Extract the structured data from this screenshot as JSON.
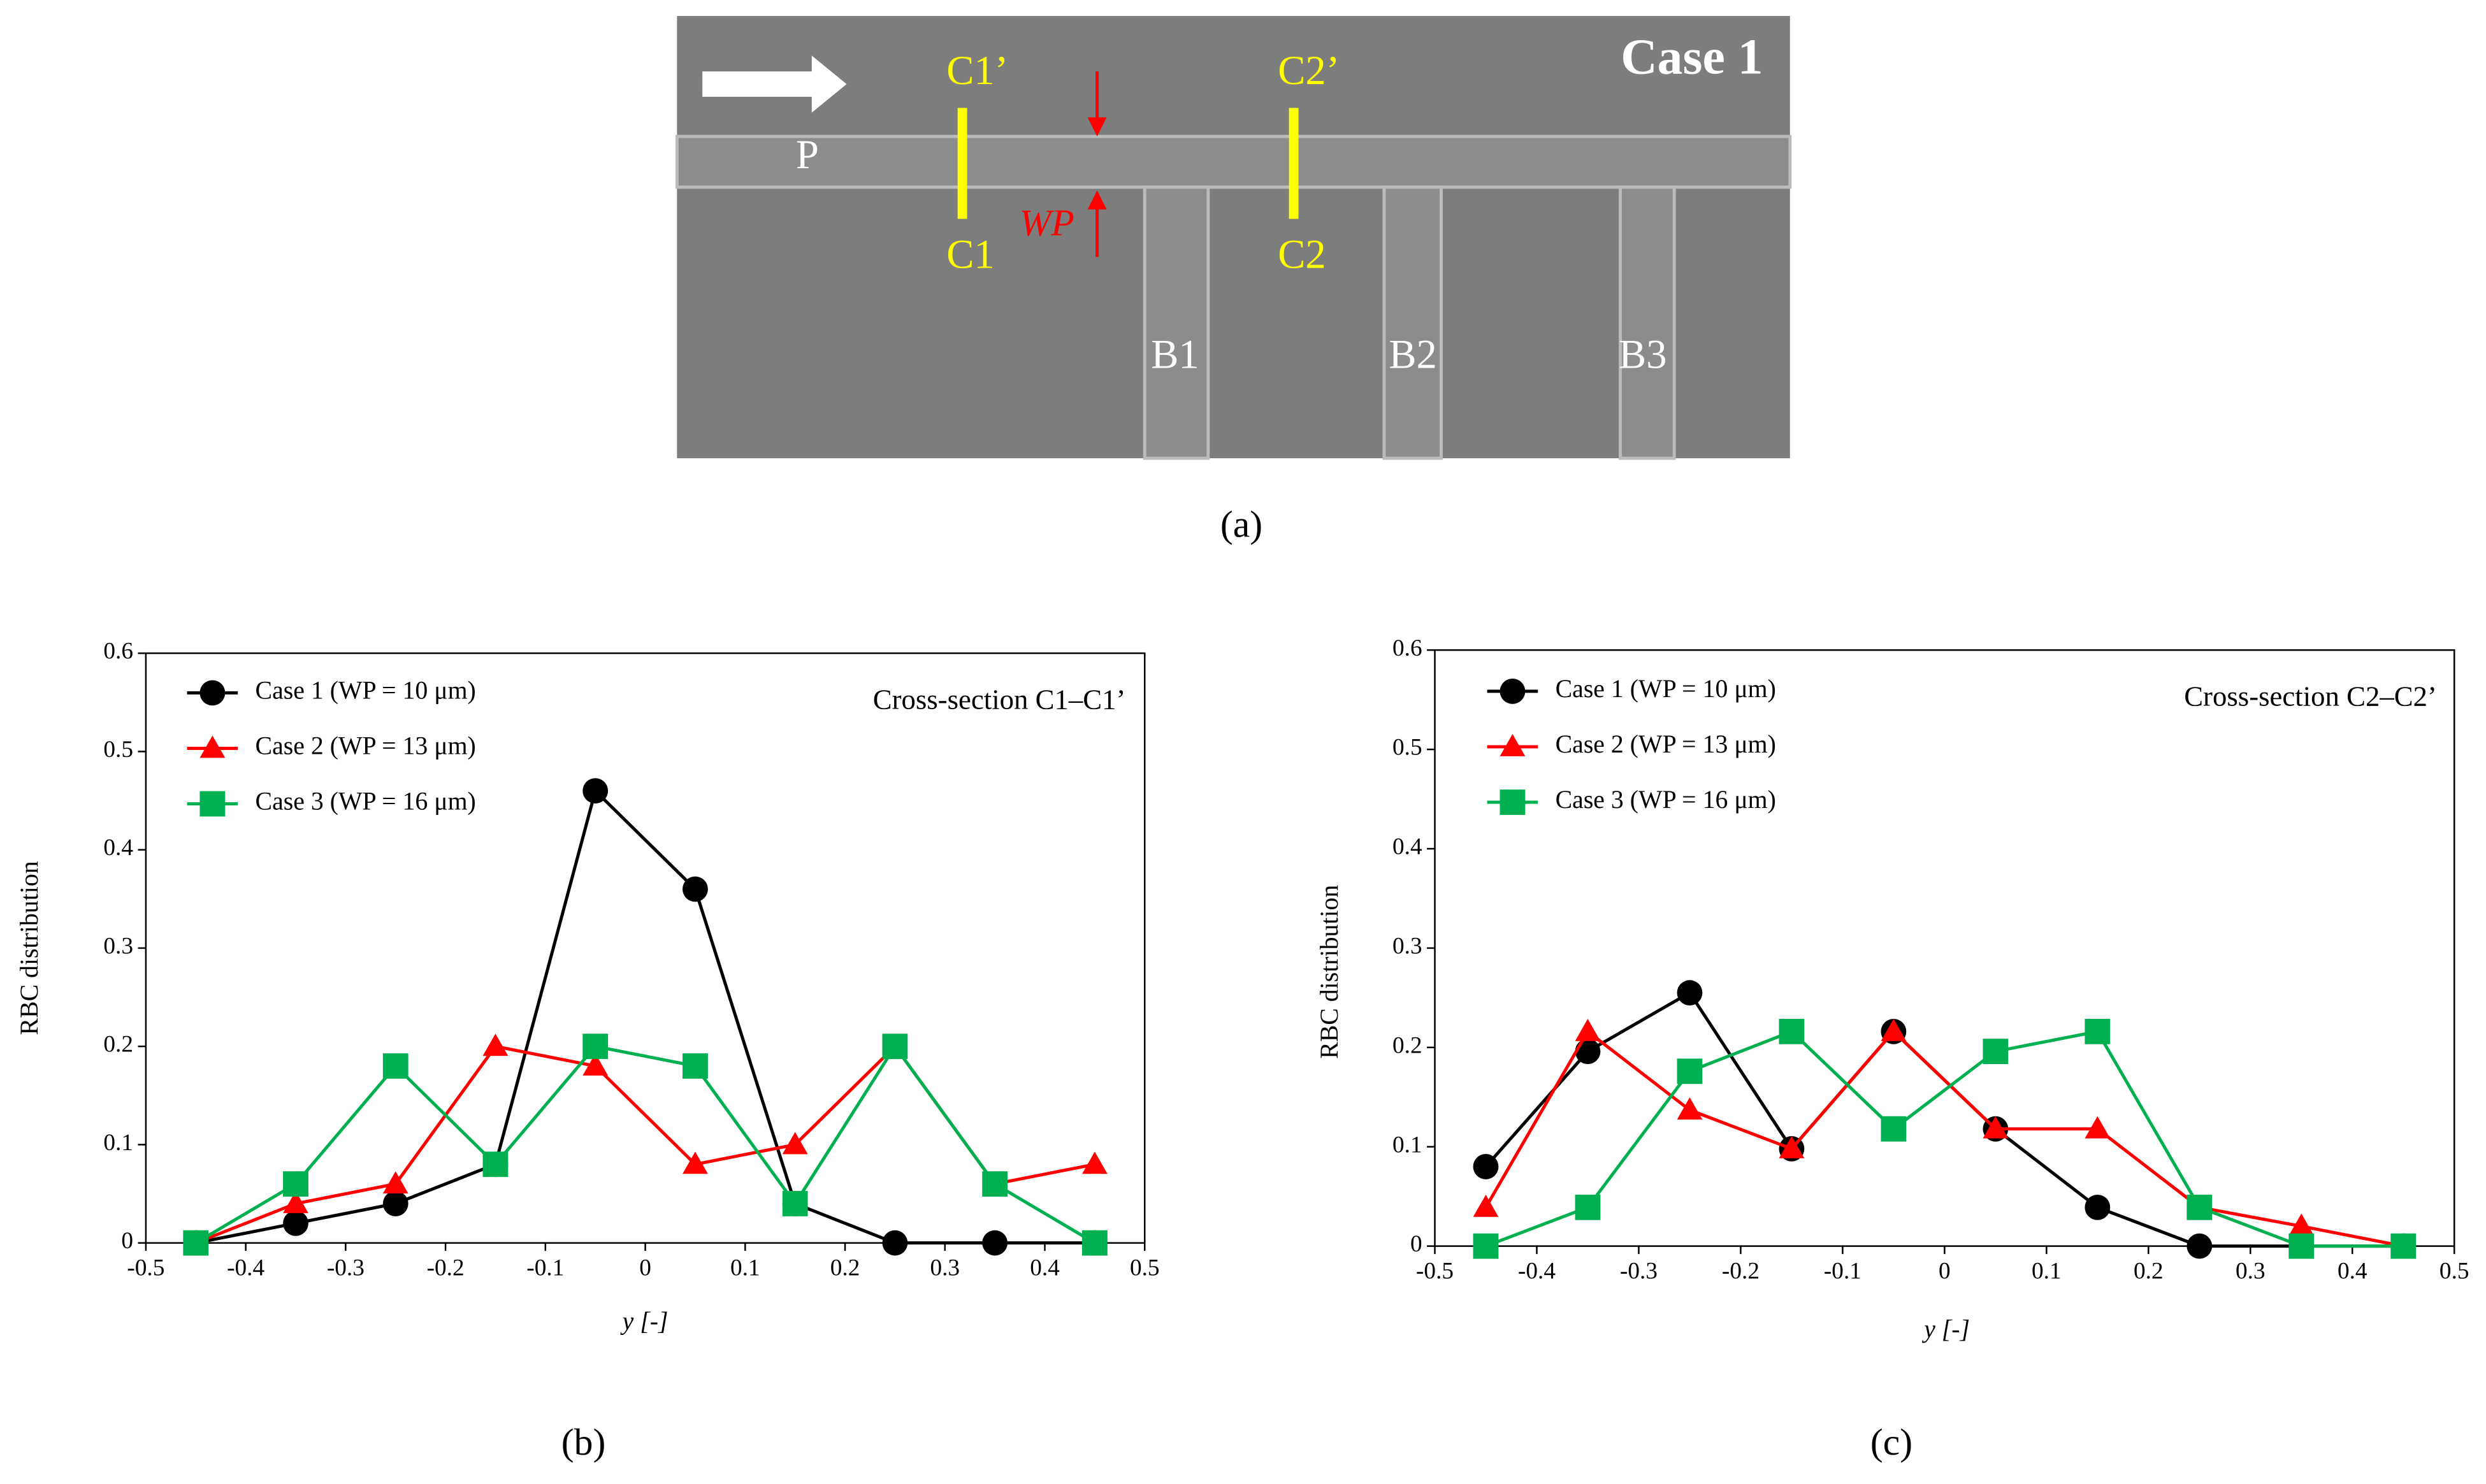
{
  "figure": {
    "panel_a": {
      "case_label": "Case 1",
      "caption": "(a)",
      "labels": {
        "P": "P",
        "C1p": "C1’",
        "C1": "C1",
        "C2p": "C2’",
        "C2": "C2",
        "WP": "WP",
        "B1": "B1",
        "B2": "B2",
        "B3": "B3"
      }
    }
  },
  "chart_data": [
    {
      "type": "line",
      "caption": "(b)",
      "annotation": "Cross-section C1–C1’",
      "xlabel": "y [-]",
      "ylabel": "RBC distribution",
      "x": [
        -0.45,
        -0.35,
        -0.25,
        -0.15,
        -0.05,
        0.05,
        0.15,
        0.25,
        0.35,
        0.45
      ],
      "xlim": [
        -0.5,
        0.5
      ],
      "xticks": [
        -0.5,
        -0.4,
        -0.3,
        -0.2,
        -0.1,
        0,
        0.1,
        0.2,
        0.3,
        0.4,
        0.5
      ],
      "ylim": [
        0,
        0.6
      ],
      "yticks": [
        0,
        0.1,
        0.2,
        0.3,
        0.4,
        0.5,
        0.6
      ],
      "legend": "upper left",
      "series": [
        {
          "name": "Case 1 (WP = 10 μm)",
          "color": "#000000",
          "marker": "circle",
          "values": [
            0,
            0.02,
            0.04,
            0.08,
            0.46,
            0.36,
            0.04,
            0,
            0,
            0
          ]
        },
        {
          "name": "Case 2 (WP = 13 μm)",
          "color": "#ff0000",
          "marker": "triangle",
          "values": [
            0,
            0.04,
            0.06,
            0.2,
            0.18,
            0.08,
            0.1,
            0.2,
            0.06,
            0.08
          ]
        },
        {
          "name": "Case 3 (WP = 16 μm)",
          "color": "#00b050",
          "marker": "square",
          "values": [
            0,
            0.06,
            0.18,
            0.08,
            0.2,
            0.18,
            0.04,
            0.2,
            0.06,
            0
          ]
        }
      ]
    },
    {
      "type": "line",
      "caption": "(c)",
      "annotation": "Cross-section C2–C2’",
      "xlabel": "y [-]",
      "ylabel": "RBC distribution",
      "x": [
        -0.45,
        -0.35,
        -0.25,
        -0.15,
        -0.05,
        0.05,
        0.15,
        0.25,
        0.35,
        0.45
      ],
      "xlim": [
        -0.5,
        0.5
      ],
      "xticks": [
        -0.5,
        -0.4,
        -0.3,
        -0.2,
        -0.1,
        0,
        0.1,
        0.2,
        0.3,
        0.4,
        0.5
      ],
      "ylim": [
        0,
        0.6
      ],
      "yticks": [
        0,
        0.1,
        0.2,
        0.3,
        0.4,
        0.5,
        0.6
      ],
      "legend": "upper left",
      "series": [
        {
          "name": "Case 1 (WP = 10 μm)",
          "color": "#000000",
          "marker": "circle",
          "values": [
            0.08,
            0.196,
            0.255,
            0.098,
            0.216,
            0.118,
            0.039,
            0,
            0,
            0
          ]
        },
        {
          "name": "Case 2 (WP = 13 μm)",
          "color": "#ff0000",
          "marker": "triangle",
          "values": [
            0.039,
            0.216,
            0.137,
            0.098,
            0.216,
            0.118,
            0.118,
            0.039,
            0.02,
            0
          ]
        },
        {
          "name": "Case 3 (WP = 16 μm)",
          "color": "#00b050",
          "marker": "square",
          "values": [
            0,
            0.039,
            0.176,
            0.216,
            0.118,
            0.196,
            0.216,
            0.039,
            0,
            0
          ]
        }
      ]
    }
  ]
}
